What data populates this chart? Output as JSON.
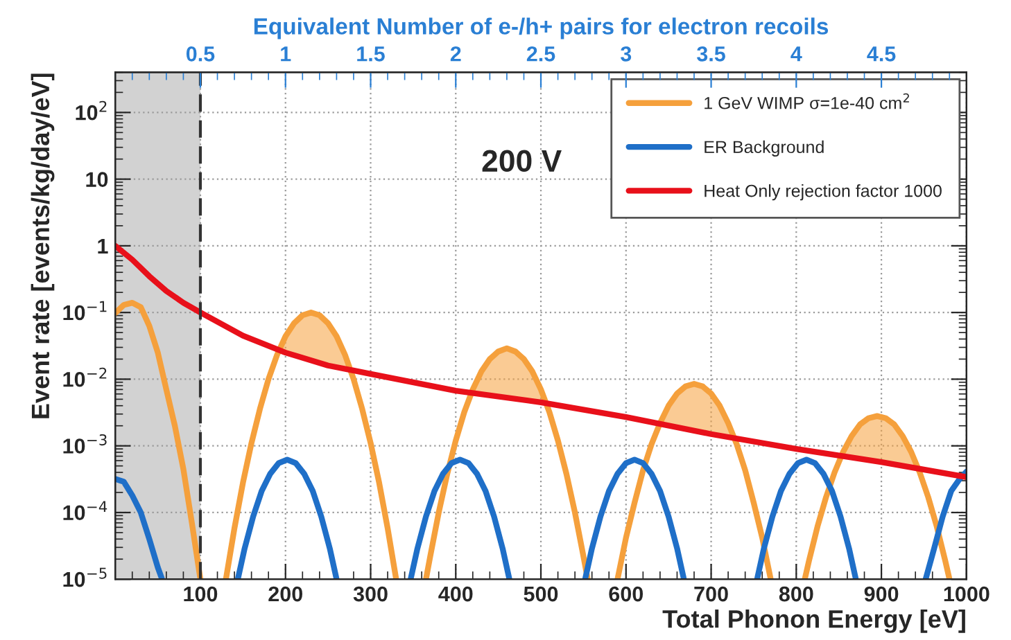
{
  "chart_data": {
    "type": "line",
    "xlabel": "Total Phonon Energy [eV]",
    "ylabel": "Event rate [events/kg/day/eV]",
    "x2label": "Equivalent Number of e-/h+ pairs for electron recoils",
    "annotations": [
      "200 V"
    ],
    "log": "y",
    "xlim": [
      0,
      1000
    ],
    "xticks": [
      100,
      200,
      300,
      400,
      500,
      600,
      700,
      800,
      900,
      1000
    ],
    "ylim": [
      1e-05,
      400
    ],
    "yticks": [
      {
        "value": 1e-05,
        "label": "10$^{−5}$"
      },
      {
        "value": 0.0001,
        "label": "10$^{−4}$"
      },
      {
        "value": 0.001,
        "label": "10$^{−3}$"
      },
      {
        "value": 0.01,
        "label": "10$^{−2}$"
      },
      {
        "value": 0.1,
        "label": "10$^{−1}$"
      },
      {
        "value": 1,
        "label": "1"
      },
      {
        "value": 10,
        "label": "10"
      },
      {
        "value": 100,
        "label": "10$^{2}$"
      }
    ],
    "x2lim": [
      0,
      5
    ],
    "x2ticks": [
      0.5,
      1,
      1.5,
      2,
      2.5,
      3,
      3.5,
      4,
      4.5
    ],
    "grid": true,
    "legend": "top right",
    "bands": [
      {
        "axis": "x",
        "from": 0,
        "to": 100,
        "color": "#b4b4b4"
      }
    ],
    "ref_lines": [
      {
        "axis": "x",
        "value": 100,
        "color": "#333333",
        "line_style": "dashed"
      }
    ],
    "series": [
      {
        "name": "1 GeV WIMP σ=1e-40 cm$^{2}$",
        "color": "#f5a03c",
        "x": [
          0,
          10,
          20,
          30,
          40,
          50,
          60,
          70,
          80,
          90,
          100,
          115,
          130,
          140,
          150,
          160,
          170,
          180,
          190,
          200,
          210,
          220,
          230,
          240,
          250,
          260,
          270,
          280,
          290,
          300,
          310,
          320,
          330,
          345,
          365,
          370,
          380,
          390,
          400,
          410,
          420,
          430,
          440,
          450,
          460,
          470,
          480,
          490,
          500,
          510,
          520,
          530,
          540,
          550,
          555,
          575,
          590,
          600,
          610,
          620,
          630,
          640,
          650,
          660,
          670,
          680,
          690,
          700,
          710,
          720,
          730,
          740,
          750,
          760,
          770,
          790,
          810,
          815,
          825,
          835,
          845,
          855,
          865,
          875,
          885,
          895,
          905,
          915,
          925,
          935,
          945,
          955,
          965,
          975,
          980
        ],
        "values": [
          0.098,
          0.13,
          0.14,
          0.12,
          0.063,
          0.025,
          0.007,
          0.002,
          0.00045,
          7e-05,
          1e-05,
          null,
          1e-05,
          5.8e-05,
          0.00028,
          0.0011,
          0.0036,
          0.01,
          0.023,
          0.044,
          0.069,
          0.091,
          0.1,
          0.091,
          0.069,
          0.044,
          0.023,
          0.01,
          0.0036,
          0.0011,
          0.00028,
          5.8e-05,
          1e-05,
          null,
          1e-05,
          2.2e-05,
          0.0001,
          0.00038,
          0.0012,
          0.0032,
          0.007,
          0.013,
          0.02,
          0.026,
          0.029,
          0.026,
          0.02,
          0.013,
          0.007,
          0.0032,
          0.0012,
          0.00038,
          0.0001,
          2.2e-05,
          1e-05,
          null,
          1e-05,
          4.2e-05,
          0.00014,
          0.00043,
          0.00106,
          0.0022,
          0.004,
          0.0061,
          0.0078,
          0.0085,
          0.0078,
          0.0061,
          0.004,
          0.0022,
          0.00106,
          0.00043,
          0.00014,
          4.2e-05,
          1e-05,
          null,
          1e-05,
          1.9e-05,
          6.2e-05,
          0.00017,
          0.0004,
          0.00081,
          0.0014,
          0.0021,
          0.0026,
          0.0028,
          0.0026,
          0.0021,
          0.0014,
          0.00081,
          0.0004,
          0.00017,
          6.2e-05,
          1.9e-05,
          1e-05
        ]
      },
      {
        "name": "ER Background",
        "color": "#1f6fc8",
        "x": [
          0,
          10,
          20,
          30,
          40,
          50,
          55,
          100,
          144,
          152,
          162,
          172,
          182,
          192,
          202,
          212,
          222,
          232,
          242,
          252,
          260,
          300,
          347,
          355,
          365,
          375,
          385,
          395,
          405,
          415,
          425,
          435,
          445,
          455,
          463,
          500,
          552,
          560,
          570,
          580,
          590,
          600,
          610,
          620,
          630,
          640,
          650,
          660,
          668,
          700,
          754,
          762,
          772,
          782,
          792,
          802,
          812,
          822,
          832,
          842,
          852,
          862,
          870,
          910,
          952,
          962,
          972,
          982,
          992,
          1000
        ],
        "values": [
          0.00032,
          0.00029,
          0.00018,
          0.0001,
          4e-05,
          1.5e-05,
          1e-05,
          null,
          1e-05,
          2.9e-05,
          8.7e-05,
          0.00021,
          0.00038,
          0.00055,
          0.00062,
          0.00055,
          0.00038,
          0.00021,
          8.7e-05,
          2.9e-05,
          1e-05,
          null,
          1e-05,
          2.9e-05,
          8.7e-05,
          0.00021,
          0.00038,
          0.00055,
          0.00062,
          0.00055,
          0.00038,
          0.00021,
          8.7e-05,
          2.9e-05,
          1e-05,
          null,
          1e-05,
          2.9e-05,
          8.7e-05,
          0.00021,
          0.00038,
          0.00055,
          0.00062,
          0.00055,
          0.00038,
          0.00021,
          8.7e-05,
          2.9e-05,
          1e-05,
          null,
          1e-05,
          2.9e-05,
          8.7e-05,
          0.00021,
          0.00038,
          0.00055,
          0.00062,
          0.00055,
          0.00038,
          0.00021,
          8.7e-05,
          2.9e-05,
          1e-05,
          null,
          1e-05,
          2.9e-05,
          8.7e-05,
          0.00021,
          0.00032,
          0.00041
        ]
      },
      {
        "name": "Heat Only rejection factor 1000",
        "color": "#e8101a",
        "x": [
          0,
          20,
          40,
          60,
          80,
          100,
          150,
          200,
          250,
          300,
          400,
          500,
          600,
          700,
          800,
          900,
          1000
        ],
        "values": [
          1.0,
          0.62,
          0.35,
          0.21,
          0.14,
          0.1,
          0.045,
          0.025,
          0.016,
          0.012,
          0.0067,
          0.0045,
          0.0027,
          0.0015,
          0.0009,
          0.00057,
          0.00034
        ]
      }
    ]
  }
}
